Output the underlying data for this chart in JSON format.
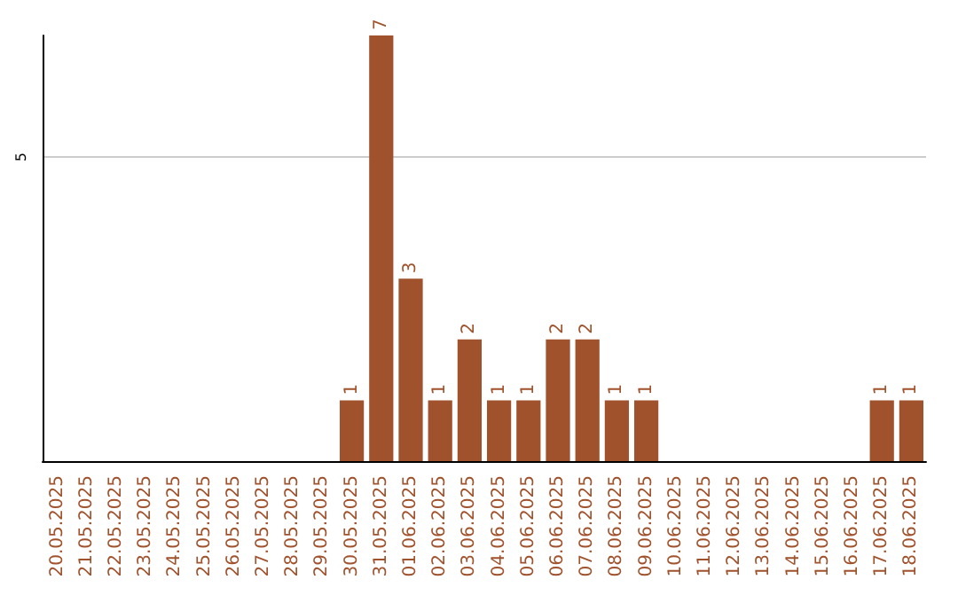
{
  "chart_data": {
    "type": "bar",
    "categories": [
      "20.05.2025",
      "21.05.2025",
      "22.05.2025",
      "23.05.2025",
      "24.05.2025",
      "25.05.2025",
      "26.05.2025",
      "27.05.2025",
      "28.05.2025",
      "29.05.2025",
      "30.05.2025",
      "31.05.2025",
      "01.06.2025",
      "02.06.2025",
      "03.06.2025",
      "04.06.2025",
      "05.06.2025",
      "06.06.2025",
      "07.06.2025",
      "08.06.2025",
      "09.06.2025",
      "10.06.2025",
      "11.06.2025",
      "12.06.2025",
      "13.06.2025",
      "14.06.2025",
      "15.06.2025",
      "16.06.2025",
      "17.06.2025",
      "18.06.2025"
    ],
    "values": [
      0,
      0,
      0,
      0,
      0,
      0,
      0,
      0,
      0,
      0,
      1,
      7,
      3,
      1,
      2,
      1,
      1,
      2,
      2,
      1,
      1,
      0,
      0,
      0,
      0,
      0,
      0,
      0,
      1,
      1
    ],
    "value_labels": [
      null,
      null,
      null,
      null,
      null,
      null,
      null,
      null,
      null,
      null,
      "1",
      "7",
      "3",
      "1",
      "2",
      "1",
      "1",
      "2",
      "2",
      "1",
      "1",
      null,
      null,
      null,
      null,
      null,
      null,
      null,
      "1",
      "1"
    ],
    "color": "#a0522d",
    "ylim": [
      0,
      7
    ],
    "yticks": [
      {
        "value": 0,
        "label": null
      },
      5
    ],
    "grid": "y"
  }
}
